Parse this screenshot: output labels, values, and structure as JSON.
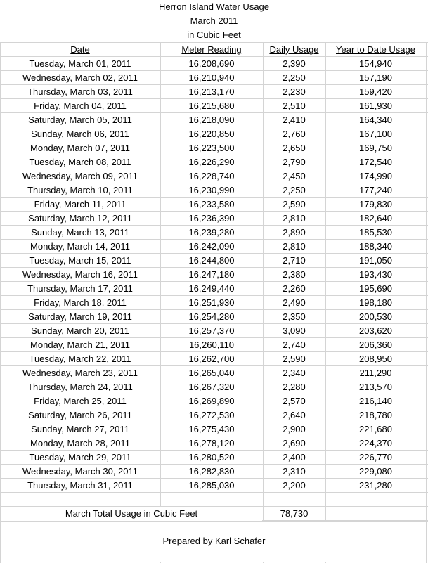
{
  "title": {
    "line1": "Herron Island Water Usage",
    "line2": "March 2011",
    "line3": "in Cubic Feet"
  },
  "headers": {
    "date": "Date",
    "meter": "Meter Reading",
    "daily": "Daily Usage",
    "ytd": "Year to Date Usage"
  },
  "rows": [
    {
      "date": "Tuesday, March 01, 2011",
      "meter": "16,208,690",
      "daily": "2,390",
      "ytd": "154,940"
    },
    {
      "date": "Wednesday, March 02, 2011",
      "meter": "16,210,940",
      "daily": "2,250",
      "ytd": "157,190"
    },
    {
      "date": "Thursday, March 03, 2011",
      "meter": "16,213,170",
      "daily": "2,230",
      "ytd": "159,420"
    },
    {
      "date": "Friday, March 04, 2011",
      "meter": "16,215,680",
      "daily": "2,510",
      "ytd": "161,930"
    },
    {
      "date": "Saturday, March 05, 2011",
      "meter": "16,218,090",
      "daily": "2,410",
      "ytd": "164,340"
    },
    {
      "date": "Sunday, March 06, 2011",
      "meter": "16,220,850",
      "daily": "2,760",
      "ytd": "167,100"
    },
    {
      "date": "Monday, March 07, 2011",
      "meter": "16,223,500",
      "daily": "2,650",
      "ytd": "169,750"
    },
    {
      "date": "Tuesday, March 08, 2011",
      "meter": "16,226,290",
      "daily": "2,790",
      "ytd": "172,540"
    },
    {
      "date": "Wednesday, March 09, 2011",
      "meter": "16,228,740",
      "daily": "2,450",
      "ytd": "174,990"
    },
    {
      "date": "Thursday, March 10, 2011",
      "meter": "16,230,990",
      "daily": "2,250",
      "ytd": "177,240"
    },
    {
      "date": "Friday, March 11, 2011",
      "meter": "16,233,580",
      "daily": "2,590",
      "ytd": "179,830"
    },
    {
      "date": "Saturday, March 12, 2011",
      "meter": "16,236,390",
      "daily": "2,810",
      "ytd": "182,640"
    },
    {
      "date": "Sunday, March 13, 2011",
      "meter": "16,239,280",
      "daily": "2,890",
      "ytd": "185,530"
    },
    {
      "date": "Monday, March 14, 2011",
      "meter": "16,242,090",
      "daily": "2,810",
      "ytd": "188,340"
    },
    {
      "date": "Tuesday, March 15, 2011",
      "meter": "16,244,800",
      "daily": "2,710",
      "ytd": "191,050"
    },
    {
      "date": "Wednesday, March 16, 2011",
      "meter": "16,247,180",
      "daily": "2,380",
      "ytd": "193,430"
    },
    {
      "date": "Thursday, March 17, 2011",
      "meter": "16,249,440",
      "daily": "2,260",
      "ytd": "195,690"
    },
    {
      "date": "Friday, March 18, 2011",
      "meter": "16,251,930",
      "daily": "2,490",
      "ytd": "198,180"
    },
    {
      "date": "Saturday, March 19, 2011",
      "meter": "16,254,280",
      "daily": "2,350",
      "ytd": "200,530"
    },
    {
      "date": "Sunday, March 20, 2011",
      "meter": "16,257,370",
      "daily": "3,090",
      "ytd": "203,620"
    },
    {
      "date": "Monday, March 21, 2011",
      "meter": "16,260,110",
      "daily": "2,740",
      "ytd": "206,360"
    },
    {
      "date": "Tuesday, March 22, 2011",
      "meter": "16,262,700",
      "daily": "2,590",
      "ytd": "208,950"
    },
    {
      "date": "Wednesday, March 23, 2011",
      "meter": "16,265,040",
      "daily": "2,340",
      "ytd": "211,290"
    },
    {
      "date": "Thursday, March 24, 2011",
      "meter": "16,267,320",
      "daily": "2,280",
      "ytd": "213,570"
    },
    {
      "date": "Friday, March 25, 2011",
      "meter": "16,269,890",
      "daily": "2,570",
      "ytd": "216,140"
    },
    {
      "date": "Saturday, March 26, 2011",
      "meter": "16,272,530",
      "daily": "2,640",
      "ytd": "218,780"
    },
    {
      "date": "Sunday, March 27, 2011",
      "meter": "16,275,430",
      "daily": "2,900",
      "ytd": "221,680"
    },
    {
      "date": "Monday, March 28, 2011",
      "meter": "16,278,120",
      "daily": "2,690",
      "ytd": "224,370"
    },
    {
      "date": "Tuesday, March 29, 2011",
      "meter": "16,280,520",
      "daily": "2,400",
      "ytd": "226,770"
    },
    {
      "date": "Wednesday, March 30, 2011",
      "meter": "16,282,830",
      "daily": "2,310",
      "ytd": "229,080"
    },
    {
      "date": "Thursday, March 31, 2011",
      "meter": "16,285,030",
      "daily": "2,200",
      "ytd": "231,280"
    }
  ],
  "total": {
    "label": "March Total Usage in Cubic Feet",
    "value": "78,730"
  },
  "footer": {
    "prepared_by": "Prepared by Karl Schafer"
  }
}
